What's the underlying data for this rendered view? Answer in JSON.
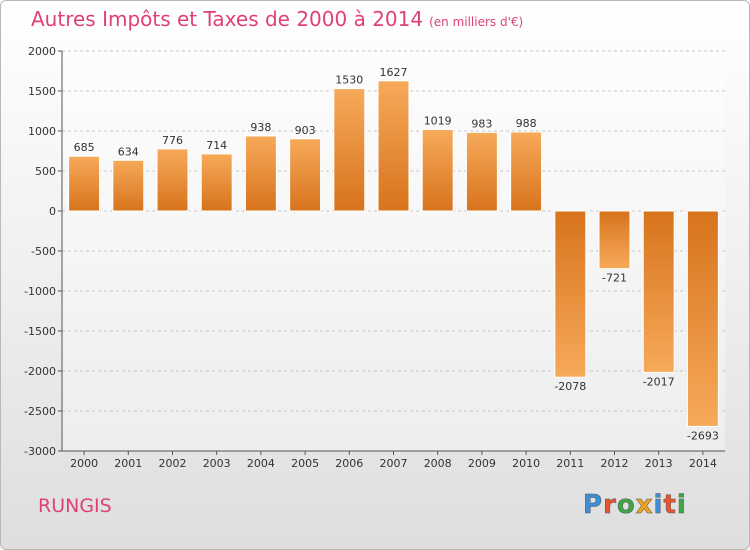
{
  "header": {
    "title": "Autres Impôts et Taxes de 2000 à 2014",
    "unit": "(en milliers d'€)"
  },
  "footer": {
    "city": "RUNGIS",
    "brand_letters": [
      "P",
      "r",
      "o",
      "x",
      "i",
      "t",
      "i"
    ],
    "brand_colors": [
      "#3a8fd6",
      "#e8542f",
      "#3fa648",
      "#f0a21c",
      "#3a8fd6",
      "#e8542f",
      "#3fa648"
    ]
  },
  "chart_data": {
    "type": "bar",
    "title": "Autres Impôts et Taxes de 2000 à 2014",
    "subtitle": "(en milliers d'€)",
    "categories": [
      "2000",
      "2001",
      "2002",
      "2003",
      "2004",
      "2005",
      "2006",
      "2007",
      "2008",
      "2009",
      "2010",
      "2011",
      "2012",
      "2013",
      "2014"
    ],
    "values": [
      685,
      634,
      776,
      714,
      938,
      903,
      1530,
      1627,
      1019,
      983,
      988,
      -2078,
      -721,
      -2017,
      -2693
    ],
    "ylim": [
      -3000,
      2000
    ],
    "yticks": [
      2000,
      1500,
      1000,
      500,
      0,
      -500,
      -1000,
      -1500,
      -2000,
      -2500,
      -3000
    ],
    "grid": true,
    "bar_color_light": "#f6aa5a",
    "bar_color_dark": "#d8731c"
  }
}
